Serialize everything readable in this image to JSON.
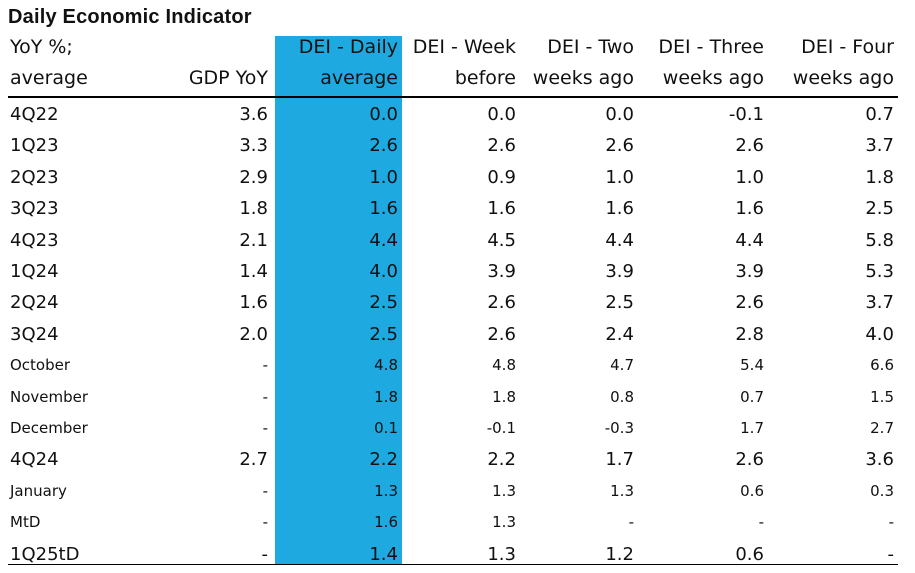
{
  "title": "Daily Economic Indicator",
  "highlight_color": "#1eaae1",
  "headers": [
    [
      "YoY %;",
      "average"
    ],
    [
      "",
      "GDP YoY"
    ],
    [
      "DEI - Daily",
      "average"
    ],
    [
      "DEI - Week",
      "before"
    ],
    [
      "DEI - Two",
      "weeks ago"
    ],
    [
      "DEI - Three",
      "weeks ago"
    ],
    [
      "DEI - Four",
      "weeks ago"
    ]
  ],
  "rows": [
    {
      "label": "4Q22",
      "style": "big",
      "values": [
        "3.6",
        "0.0",
        "0.0",
        "0.0",
        "-0.1",
        "0.7"
      ]
    },
    {
      "label": "1Q23",
      "style": "big",
      "values": [
        "3.3",
        "2.6",
        "2.6",
        "2.6",
        "2.6",
        "3.7"
      ]
    },
    {
      "label": "2Q23",
      "style": "big",
      "values": [
        "2.9",
        "1.0",
        "0.9",
        "1.0",
        "1.0",
        "1.8"
      ]
    },
    {
      "label": "3Q23",
      "style": "big",
      "values": [
        "1.8",
        "1.6",
        "1.6",
        "1.6",
        "1.6",
        "2.5"
      ]
    },
    {
      "label": "4Q23",
      "style": "big",
      "values": [
        "2.1",
        "4.4",
        "4.5",
        "4.4",
        "4.4",
        "5.8"
      ]
    },
    {
      "label": "1Q24",
      "style": "big",
      "values": [
        "1.4",
        "4.0",
        "3.9",
        "3.9",
        "3.9",
        "5.3"
      ]
    },
    {
      "label": "2Q24",
      "style": "big",
      "values": [
        "1.6",
        "2.5",
        "2.6",
        "2.5",
        "2.6",
        "3.7"
      ]
    },
    {
      "label": "3Q24",
      "style": "big",
      "values": [
        "2.0",
        "2.5",
        "2.6",
        "2.4",
        "2.8",
        "4.0"
      ]
    },
    {
      "label": "October",
      "style": "small",
      "values": [
        "-",
        "4.8",
        "4.8",
        "4.7",
        "5.4",
        "6.6"
      ]
    },
    {
      "label": "November",
      "style": "small",
      "values": [
        "-",
        "1.8",
        "1.8",
        "0.8",
        "0.7",
        "1.5"
      ]
    },
    {
      "label": "December",
      "style": "small",
      "values": [
        "-",
        "0.1",
        "-0.1",
        "-0.3",
        "1.7",
        "2.7"
      ]
    },
    {
      "label": "4Q24",
      "style": "big",
      "values": [
        "2.7",
        "2.2",
        "2.2",
        "1.7",
        "2.6",
        "3.6"
      ]
    },
    {
      "label": "January",
      "style": "small",
      "values": [
        "-",
        "1.3",
        "1.3",
        "1.3",
        "0.6",
        "0.3"
      ]
    },
    {
      "label": "MtD",
      "style": "small",
      "values": [
        "-",
        "1.6",
        "1.3",
        "-",
        "-",
        "-"
      ]
    },
    {
      "label": "1Q25tD",
      "style": "big",
      "values": [
        "-",
        "1.4",
        "1.3",
        "1.2",
        "0.6",
        "-"
      ]
    }
  ]
}
